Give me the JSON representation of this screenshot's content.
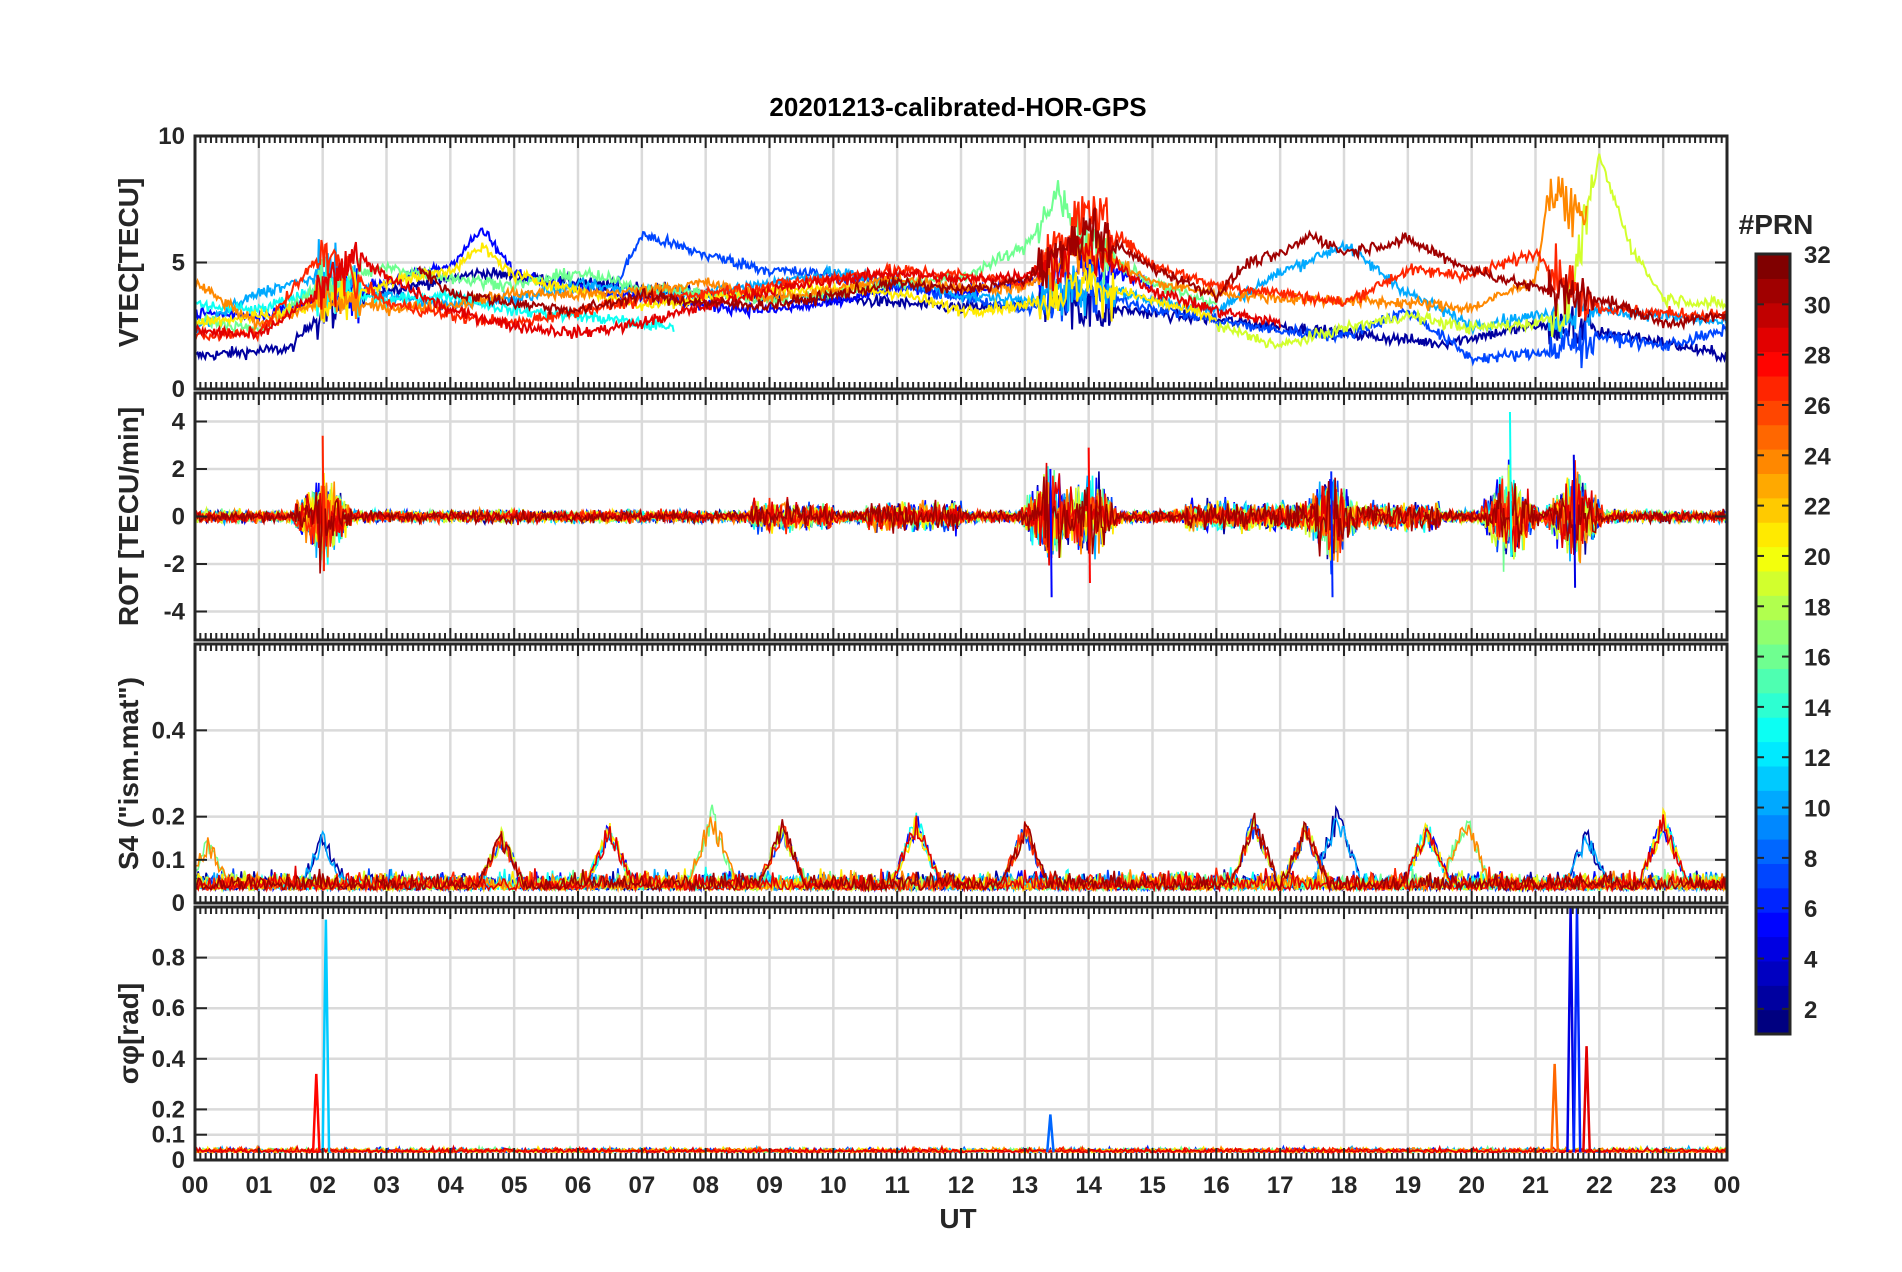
{
  "chart_data": {
    "type": "line",
    "title": "20201213-calibrated-HOR-GPS",
    "xlabel": "UT",
    "x_ticks": [
      "00",
      "01",
      "02",
      "03",
      "04",
      "05",
      "06",
      "07",
      "08",
      "09",
      "10",
      "11",
      "12",
      "13",
      "14",
      "15",
      "16",
      "17",
      "18",
      "19",
      "20",
      "21",
      "22",
      "23",
      "00"
    ],
    "x_range_hours": [
      0,
      24
    ],
    "grid": true,
    "colorbar": {
      "label": "#PRN",
      "range": [
        1,
        32
      ],
      "ticks": [
        "32",
        "30",
        "28",
        "26",
        "24",
        "22",
        "20",
        "18",
        "16",
        "14",
        "12",
        "10",
        "8",
        "6",
        "4",
        "2"
      ],
      "colormap": "jet",
      "placement": "right"
    },
    "panels": [
      {
        "name": "vtec",
        "ylabel": "VTEC[TECU]",
        "ylim": [
          0,
          10
        ],
        "yticks": [
          0,
          5,
          10
        ],
        "ytick_labels": [
          "0",
          "5",
          "10"
        ],
        "series": [
          {
            "prn": 2,
            "x": [
              0.0,
              1.5,
              2.0,
              3.0,
              4.5,
              6.0,
              7.5,
              9.0,
              10.5,
              12.0,
              13.5,
              15.0,
              16.5,
              18.0,
              19.5,
              21.0,
              22.5,
              24.0
            ],
            "y": [
              1.3,
              1.6,
              3.2,
              3.9,
              4.6,
              4.2,
              3.9,
              3.6,
              3.5,
              3.2,
              3.4,
              3.0,
              2.6,
              2.2,
              1.8,
              2.5,
              2.1,
              1.3
            ]
          },
          {
            "prn": 5,
            "x": [
              0.0,
              1.0,
              2.0,
              3.0,
              4.0,
              4.5,
              5.0,
              6.0,
              7.0,
              8.0,
              9.0,
              10.0,
              11.0,
              12.0,
              13.0,
              14.0,
              15.0
            ],
            "y": [
              3.0,
              2.9,
              3.6,
              4.2,
              4.9,
              6.3,
              4.6,
              4.0,
              3.7,
              3.3,
              3.1,
              3.4,
              4.0,
              3.8,
              4.2,
              5.0,
              4.1
            ]
          },
          {
            "prn": 7,
            "x": [
              6.5,
              7.0,
              8.0,
              9.0,
              10.0,
              11.0,
              12.0,
              13.0,
              14.0,
              15.0,
              16.0,
              17.0,
              18.0,
              19.0,
              20.0,
              21.0,
              22.0,
              23.0,
              24.0
            ],
            "y": [
              3.6,
              6.1,
              5.3,
              4.7,
              4.5,
              4.1,
              3.6,
              3.2,
              3.8,
              3.2,
              2.7,
              2.3,
              2.1,
              3.1,
              1.2,
              1.4,
              2.1,
              1.7,
              2.3
            ]
          },
          {
            "prn": 10,
            "x": [
              0.0,
              1.0,
              2.0,
              3.0,
              4.0,
              5.0,
              6.0,
              7.0,
              8.0,
              9.0,
              10.0,
              11.0,
              12.0,
              13.0,
              14.0,
              15.0,
              16.0,
              17.0,
              18.0,
              19.0,
              20.0,
              21.0,
              22.0,
              23.0,
              24.0
            ],
            "y": [
              2.4,
              3.8,
              4.5,
              3.7,
              3.3,
              3.6,
              4.1,
              3.9,
              3.8,
              4.2,
              4.6,
              4.3,
              3.7,
              3.5,
              4.2,
              3.5,
              3.1,
              4.6,
              5.7,
              3.8,
              2.5,
              2.9,
              3.1,
              2.9,
              2.6
            ]
          },
          {
            "prn": 13,
            "x": [
              0.0,
              1.0,
              2.0,
              3.0,
              4.0,
              5.0,
              6.0,
              7.0,
              7.5
            ],
            "y": [
              3.3,
              3.1,
              4.0,
              3.5,
              3.7,
              3.1,
              2.9,
              2.6,
              2.4
            ]
          },
          {
            "prn": 16,
            "x": [
              0.0,
              1.0,
              2.0,
              3.0,
              4.0,
              5.0,
              6.0,
              7.0,
              8.0,
              9.0,
              10.0,
              11.0,
              12.0,
              13.0,
              13.5,
              14.0,
              15.0,
              16.0
            ],
            "y": [
              2.8,
              2.3,
              4.2,
              4.8,
              4.4,
              4.1,
              4.6,
              4.0,
              3.8,
              3.5,
              3.8,
              4.2,
              4.4,
              5.6,
              7.6,
              5.6,
              4.2,
              3.3
            ]
          },
          {
            "prn": 19,
            "x": [
              16.0,
              17.0,
              18.0,
              19.0,
              20.0,
              21.0,
              21.5,
              22.0,
              22.5,
              23.0,
              24.0
            ],
            "y": [
              2.5,
              1.7,
              2.4,
              2.9,
              2.4,
              2.6,
              3.1,
              9.2,
              5.6,
              3.6,
              3.3
            ]
          },
          {
            "prn": 21,
            "x": [
              0.0,
              1.0,
              2.0,
              3.0,
              4.0,
              4.5,
              5.0,
              6.0,
              7.0,
              8.0,
              9.0,
              10.0,
              11.0,
              12.0,
              13.0,
              14.0,
              15.0,
              16.0
            ],
            "y": [
              2.6,
              2.9,
              3.3,
              4.2,
              4.7,
              5.6,
              4.5,
              3.9,
              3.3,
              3.6,
              3.9,
              4.0,
              3.8,
              3.1,
              3.3,
              4.2,
              3.5,
              2.8
            ]
          },
          {
            "prn": 24,
            "x": [
              0.0,
              1.0,
              2.0,
              3.0,
              4.0,
              5.0,
              6.0,
              7.0,
              8.0,
              9.0,
              10.0,
              11.0,
              12.0,
              13.0,
              14.0,
              15.0,
              16.0,
              17.0,
              18.0,
              19.0,
              20.0,
              21.0,
              21.2,
              21.8
            ],
            "y": [
              4.2,
              2.5,
              3.5,
              3.2,
              3.3,
              3.8,
              3.7,
              3.9,
              4.2,
              3.6,
              3.9,
              4.4,
              4.0,
              4.0,
              5.7,
              4.2,
              3.8,
              3.6,
              3.5,
              3.4,
              3.2,
              4.3,
              7.7,
              6.7
            ]
          },
          {
            "prn": 27,
            "x": [
              0.0,
              1.0,
              2.0,
              3.0,
              4.0,
              5.0,
              6.0,
              7.0,
              8.0,
              9.0,
              10.0,
              11.0,
              12.0,
              13.0,
              14.0,
              15.0,
              16.0,
              17.0,
              18.0,
              19.0,
              20.0,
              21.0,
              22.0,
              23.0,
              24.0
            ],
            "y": [
              2.1,
              2.2,
              5.4,
              3.4,
              2.9,
              2.6,
              3.1,
              3.5,
              3.8,
              4.1,
              4.4,
              4.7,
              4.5,
              4.2,
              7.1,
              4.9,
              4.1,
              3.8,
              3.4,
              4.7,
              4.5,
              5.4,
              3.2,
              3.0,
              2.9
            ]
          },
          {
            "prn": 29,
            "x": [
              0.0,
              1.0,
              2.0,
              2.5,
              3.0,
              4.0,
              5.0,
              6.0,
              7.0,
              8.0,
              9.0,
              10.0,
              11.0,
              12.0,
              13.0,
              14.0,
              15.0,
              16.0,
              17.0
            ],
            "y": [
              2.3,
              2.1,
              3.9,
              5.4,
              4.4,
              3.1,
              2.5,
              2.2,
              2.6,
              3.3,
              3.9,
              4.3,
              4.6,
              4.3,
              4.5,
              5.6,
              3.9,
              3.1,
              2.6
            ]
          },
          {
            "prn": 31,
            "x": [
              3.5,
              4.0,
              5.0,
              6.0,
              7.0,
              8.0,
              9.0,
              10.0,
              11.0,
              12.0,
              13.0,
              14.0,
              15.0,
              16.0,
              16.5,
              17.0,
              17.5,
              18.0,
              19.0,
              20.0,
              21.0,
              22.0,
              23.0,
              24.0
            ],
            "y": [
              4.8,
              3.8,
              3.4,
              3.1,
              3.7,
              3.4,
              3.3,
              3.7,
              4.2,
              3.9,
              4.3,
              6.3,
              4.8,
              3.7,
              5.0,
              5.3,
              6.1,
              5.4,
              5.9,
              4.7,
              4.0,
              3.6,
              2.6,
              2.9
            ]
          }
        ]
      },
      {
        "name": "rot",
        "ylabel": "ROT [TECU/min]",
        "ylim": [
          -5.2,
          5.2
        ],
        "yticks": [
          -4,
          -2,
          0,
          2,
          4
        ],
        "ytick_labels": [
          "-4",
          "-2",
          "0",
          "2",
          "4"
        ],
        "series_description_prns": [
          2,
          5,
          7,
          10,
          13,
          16,
          19,
          21,
          24,
          27,
          29,
          31
        ],
        "peaks": [
          {
            "x": 2.0,
            "max": 3.4,
            "min": -2.3
          },
          {
            "x": 13.4,
            "max": 2.0,
            "min": -3.4
          },
          {
            "x": 14.0,
            "max": 2.9,
            "min": -2.8
          },
          {
            "x": 17.8,
            "max": 1.9,
            "min": -3.4
          },
          {
            "x": 20.6,
            "max": 4.4,
            "min": -1.7
          },
          {
            "x": 21.6,
            "max": 2.6,
            "min": -3.0
          }
        ]
      },
      {
        "name": "s4",
        "ylabel": "S4 (\"ism.mat\")",
        "ylim": [
          0,
          0.6
        ],
        "yticks": [
          0,
          0.1,
          0.2,
          0.4
        ],
        "ytick_labels": [
          "0",
          "0.1",
          "0.2",
          "0.4"
        ],
        "peaks": [
          {
            "x": 0.2,
            "y": 0.16
          },
          {
            "x": 2.0,
            "y": 0.17
          },
          {
            "x": 4.8,
            "y": 0.18
          },
          {
            "x": 6.5,
            "y": 0.2
          },
          {
            "x": 8.1,
            "y": 0.23
          },
          {
            "x": 9.2,
            "y": 0.2
          },
          {
            "x": 11.3,
            "y": 0.22
          },
          {
            "x": 13.0,
            "y": 0.2
          },
          {
            "x": 16.6,
            "y": 0.22
          },
          {
            "x": 17.4,
            "y": 0.2
          },
          {
            "x": 17.9,
            "y": 0.24
          },
          {
            "x": 19.3,
            "y": 0.2
          },
          {
            "x": 19.9,
            "y": 0.23
          },
          {
            "x": 21.8,
            "y": 0.18
          },
          {
            "x": 23.0,
            "y": 0.22
          }
        ]
      },
      {
        "name": "sigma_phi",
        "ylabel": "σφ[rad]",
        "ylim": [
          0,
          1.0
        ],
        "yticks": [
          0,
          0.1,
          0.2,
          0.4,
          0.6,
          0.8
        ],
        "ytick_labels": [
          "0",
          "0.1",
          "0.2",
          "0.4",
          "0.6",
          "0.8"
        ],
        "peaks": [
          {
            "x": 1.9,
            "y": 0.34,
            "prn": 28
          },
          {
            "x": 2.05,
            "y": 0.95,
            "prn": 11
          },
          {
            "x": 13.4,
            "y": 0.18,
            "prn": 8
          },
          {
            "x": 21.3,
            "y": 0.38,
            "prn": 25
          },
          {
            "x": 21.55,
            "y": 1.0,
            "prn": 4
          },
          {
            "x": 21.65,
            "y": 1.0,
            "prn": 6
          },
          {
            "x": 21.8,
            "y": 0.45,
            "prn": 29
          }
        ]
      }
    ]
  }
}
